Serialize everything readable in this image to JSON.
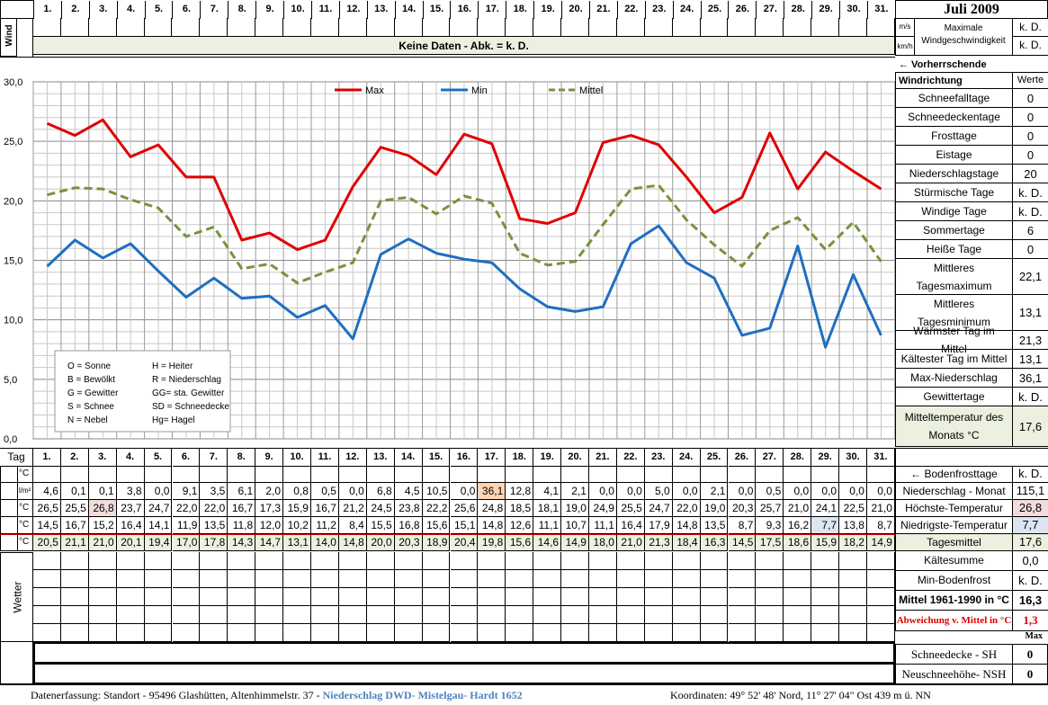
{
  "title": "Juli 2009",
  "days": [
    "1.",
    "2.",
    "3.",
    "4.",
    "5.",
    "6.",
    "7.",
    "8.",
    "9.",
    "10.",
    "11.",
    "12.",
    "13.",
    "14.",
    "15.",
    "16.",
    "17.",
    "18.",
    "19.",
    "20.",
    "21.",
    "22.",
    "23.",
    "24.",
    "25.",
    "26.",
    "27.",
    "28.",
    "29.",
    "30.",
    "31."
  ],
  "wind": {
    "side_label": "Wind",
    "unit_ms": "m/s",
    "unit_kmh": "km/h",
    "no_data": "Keine Daten - Abk. = k. D.",
    "max_label": "Maximale Windgeschwindigkeit",
    "max_ms": "k. D.",
    "max_kmh": "k. D.",
    "direction_label": "← Vorherrschende Windrichtung"
  },
  "tag_label": "Tag",
  "werte_label": "Werte",
  "stats": [
    {
      "label": "Schneefalltage",
      "value": "0"
    },
    {
      "label": "Schneedeckentage",
      "value": "0"
    },
    {
      "label": "Frosttage",
      "value": "0"
    },
    {
      "label": "Eistage",
      "value": "0"
    },
    {
      "label": "Niederschlagstage",
      "value": "20"
    },
    {
      "label": "Stürmische Tage",
      "value": "k. D."
    },
    {
      "label": "Windige Tage",
      "value": "k. D."
    },
    {
      "label": "Sommertage",
      "value": "6"
    },
    {
      "label": "Heiße Tage",
      "value": "0"
    },
    {
      "label": "Mittleres Tagesmaximum",
      "value": "22,1"
    },
    {
      "label": "Mittleres Tagesminimum",
      "value": "13,1"
    },
    {
      "label": "Wärmster Tag im Mittel",
      "value": "21,3"
    },
    {
      "label": "Kältester Tag im Mittel",
      "value": "13,1"
    },
    {
      "label": "Max-Niederschlag",
      "value": "36,1"
    },
    {
      "label": "Gewittertage",
      "value": "k. D."
    },
    {
      "label": "Mitteltemperatur des Monats °C",
      "value": "17,6"
    }
  ],
  "legend_box": [
    [
      "O = Sonne",
      "H = Heiter"
    ],
    [
      "B = Bewölkt",
      "R = Niederschlag"
    ],
    [
      "G = Gewitter",
      "GG= sta. Gewitter"
    ],
    [
      "S = Schnee",
      "SD = Schneedecke"
    ],
    [
      "N = Nebel",
      "Hg= Hagel"
    ]
  ],
  "rows": {
    "unit_c": "°C",
    "unit_lm2": "l/m²",
    "precip": [
      "4,6",
      "0,1",
      "0,1",
      "3,8",
      "0,0",
      "9,1",
      "3,5",
      "6,1",
      "2,0",
      "0,8",
      "0,5",
      "0,0",
      "6,8",
      "4,5",
      "10,5",
      "0,0",
      "36,1",
      "12,8",
      "4,1",
      "2,1",
      "0,0",
      "0,0",
      "5,0",
      "0,0",
      "2,1",
      "0,0",
      "0,5",
      "0,0",
      "0,0",
      "0,0",
      "0,0"
    ],
    "tmax": [
      "26,5",
      "25,5",
      "26,8",
      "23,7",
      "24,7",
      "22,0",
      "22,0",
      "16,7",
      "17,3",
      "15,9",
      "16,7",
      "21,2",
      "24,5",
      "23,8",
      "22,2",
      "25,6",
      "24,8",
      "18,5",
      "18,1",
      "19,0",
      "24,9",
      "25,5",
      "24,7",
      "22,0",
      "19,0",
      "20,3",
      "25,7",
      "21,0",
      "24,1",
      "22,5",
      "21,0"
    ],
    "tmin": [
      "14,5",
      "16,7",
      "15,2",
      "16,4",
      "14,1",
      "11,9",
      "13,5",
      "11,8",
      "12,0",
      "10,2",
      "11,2",
      "8,4",
      "15,5",
      "16,8",
      "15,6",
      "15,1",
      "14,8",
      "12,6",
      "11,1",
      "10,7",
      "11,1",
      "16,4",
      "17,9",
      "14,8",
      "13,5",
      "8,7",
      "9,3",
      "16,2",
      "7,7",
      "13,8",
      "8,7"
    ],
    "tmean": [
      "20,5",
      "21,1",
      "21,0",
      "20,1",
      "19,4",
      "17,0",
      "17,8",
      "14,3",
      "14,7",
      "13,1",
      "14,0",
      "14,8",
      "20,0",
      "20,3",
      "18,9",
      "20,4",
      "19,8",
      "15,6",
      "14,6",
      "14,9",
      "18,0",
      "21,0",
      "21,3",
      "18,4",
      "16,3",
      "14,5",
      "17,5",
      "18,6",
      "15,9",
      "18,2",
      "14,9"
    ]
  },
  "lower_right": [
    {
      "label": "← Bodenfrosttage",
      "value": "k. D."
    },
    {
      "label": "Niederschlag - Monat",
      "value": "115,1"
    },
    {
      "label": "Höchste-Temperatur",
      "value": "26,8"
    },
    {
      "label": "Niedrigste-Temperatur",
      "value": "7,7"
    },
    {
      "label": "Tagesmittel",
      "value": "17,6"
    },
    {
      "label": "Kältesumme",
      "value": "0,0"
    },
    {
      "label": "Min-Bodenfrost",
      "value": "k. D."
    },
    {
      "label": "Mittel 1961-1990 in °C",
      "value": "16,3"
    },
    {
      "label": "Abweichung v. Mittel in °C",
      "value": "1,3"
    }
  ],
  "max_label": "Max",
  "wetter_label": "Wetter",
  "snow": [
    {
      "label": "Schneedecke -  SH",
      "value": "0"
    },
    {
      "label": "Neuschneehöhe- NSH",
      "value": "0"
    }
  ],
  "footer": {
    "left": "Datenerfassung:  Standort -  95496  Glashütten, Altenhimmelstr. 37 - ",
    "link": "Niederschlag DWD- Mistelgau- Hardt 1652",
    "right": "Koordinaten:  49° 52' 48' Nord,   11° 27' 04\" Ost   439 m ü. NN"
  },
  "colors": {
    "max": "#e00000",
    "min": "#1f6fc0",
    "mittel": "#77933c"
  },
  "chart_data": {
    "type": "line",
    "x": [
      1,
      2,
      3,
      4,
      5,
      6,
      7,
      8,
      9,
      10,
      11,
      12,
      13,
      14,
      15,
      16,
      17,
      18,
      19,
      20,
      21,
      22,
      23,
      24,
      25,
      26,
      27,
      28,
      29,
      30,
      31
    ],
    "series": [
      {
        "name": "Max",
        "values": [
          26.5,
          25.5,
          26.8,
          23.7,
          24.7,
          22.0,
          22.0,
          16.7,
          17.3,
          15.9,
          16.7,
          21.2,
          24.5,
          23.8,
          22.2,
          25.6,
          24.8,
          18.5,
          18.1,
          19.0,
          24.9,
          25.5,
          24.7,
          22.0,
          19.0,
          20.3,
          25.7,
          21.0,
          24.1,
          22.5,
          21.0
        ]
      },
      {
        "name": "Min",
        "values": [
          14.5,
          16.7,
          15.2,
          16.4,
          14.1,
          11.9,
          13.5,
          11.8,
          12.0,
          10.2,
          11.2,
          8.4,
          15.5,
          16.8,
          15.6,
          15.1,
          14.8,
          12.6,
          11.1,
          10.7,
          11.1,
          16.4,
          17.9,
          14.8,
          13.5,
          8.7,
          9.3,
          16.2,
          7.7,
          13.8,
          8.7
        ]
      },
      {
        "name": "Mittel",
        "values": [
          20.5,
          21.1,
          21.0,
          20.1,
          19.4,
          17.0,
          17.8,
          14.3,
          14.7,
          13.1,
          14.0,
          14.8,
          20.0,
          20.3,
          18.9,
          20.4,
          19.8,
          15.6,
          14.6,
          14.9,
          18.0,
          21.0,
          21.3,
          18.4,
          16.3,
          14.5,
          17.5,
          18.6,
          15.9,
          18.2,
          14.9
        ]
      }
    ],
    "ylim": [
      0,
      30
    ],
    "yticks": [
      "0,0",
      "5,0",
      "10,0",
      "15,0",
      "20,0",
      "25,0",
      "30,0"
    ],
    "grid": true,
    "legend": "top"
  }
}
